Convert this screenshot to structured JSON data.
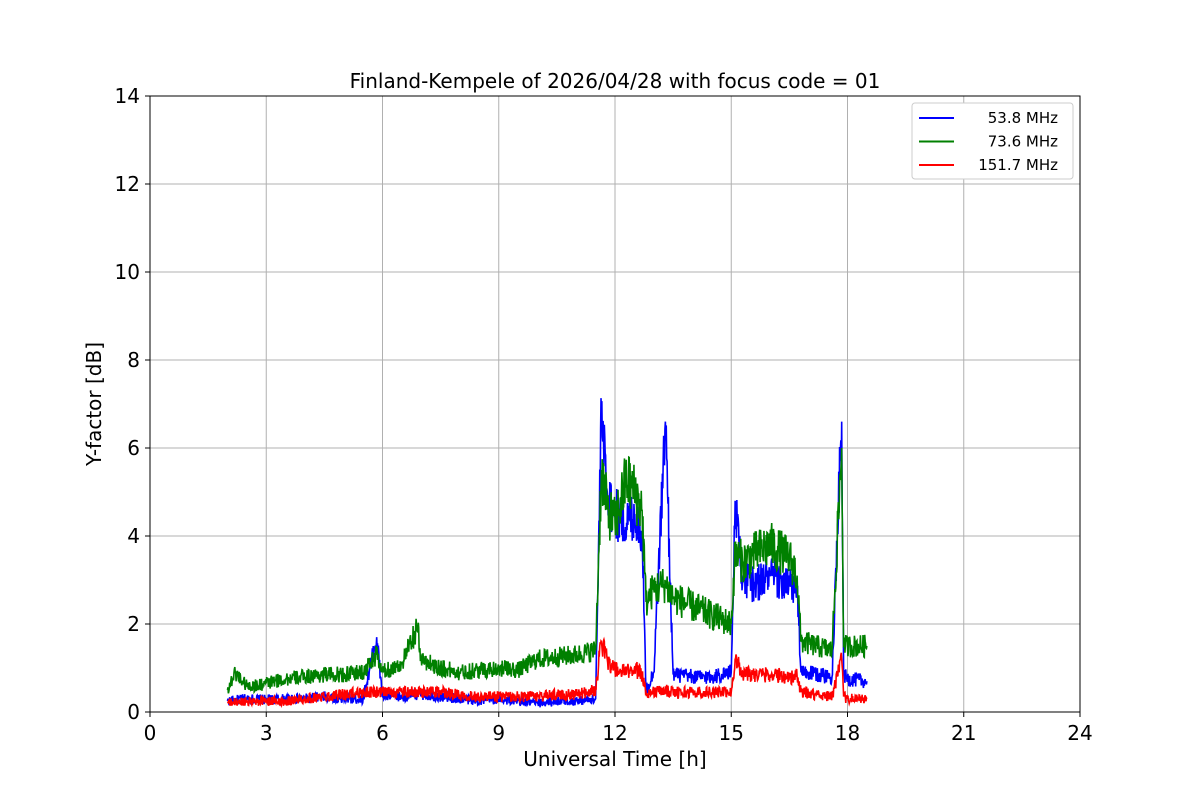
{
  "chart_data": {
    "type": "line",
    "title": "Finland-Kempele of 2026/04/28 with focus code = 01",
    "xlabel": "Universal Time [h]",
    "ylabel": "Y-factor [dB]",
    "xlim": [
      0,
      24
    ],
    "ylim": [
      0,
      14
    ],
    "xticks": [
      "0",
      "3",
      "6",
      "9",
      "12",
      "15",
      "18",
      "21",
      "24"
    ],
    "yticks": [
      "0",
      "2",
      "4",
      "6",
      "8",
      "10",
      "12",
      "14"
    ],
    "grid": true,
    "legend_position": "top-right",
    "series": [
      {
        "name": "53.8 MHz",
        "color": "#0000ff",
        "x": [
          2.0,
          2.5,
          3.0,
          3.5,
          4.0,
          4.5,
          5.0,
          5.5,
          5.85,
          6.0,
          6.5,
          7.0,
          7.5,
          8.0,
          8.5,
          9.0,
          9.5,
          10.0,
          10.5,
          11.0,
          11.5,
          11.65,
          11.8,
          12.0,
          12.3,
          12.5,
          12.7,
          12.8,
          13.0,
          13.3,
          13.5,
          14.0,
          14.5,
          15.0,
          15.1,
          15.3,
          15.6,
          16.0,
          16.5,
          16.7,
          16.8,
          17.2,
          17.6,
          17.85,
          17.9,
          18.0,
          18.5
        ],
        "y": [
          0.25,
          0.3,
          0.28,
          0.3,
          0.3,
          0.35,
          0.3,
          0.3,
          1.7,
          0.35,
          0.35,
          0.4,
          0.35,
          0.3,
          0.25,
          0.3,
          0.25,
          0.2,
          0.25,
          0.25,
          0.3,
          6.8,
          5.0,
          4.5,
          4.3,
          4.5,
          4.1,
          0.5,
          0.9,
          6.6,
          0.85,
          0.8,
          0.8,
          0.9,
          4.8,
          3.0,
          2.9,
          3.1,
          2.85,
          2.8,
          0.9,
          0.85,
          0.8,
          6.6,
          0.85,
          0.75,
          0.7
        ]
      },
      {
        "name": "73.6 MHz",
        "color": "#008000",
        "x": [
          2.0,
          2.2,
          2.5,
          2.8,
          3.0,
          3.5,
          4.0,
          4.5,
          5.0,
          5.5,
          5.85,
          6.0,
          6.5,
          6.9,
          7.0,
          7.5,
          8.0,
          8.5,
          9.0,
          9.5,
          10.0,
          10.5,
          11.0,
          11.5,
          11.65,
          11.8,
          12.0,
          12.3,
          12.5,
          12.7,
          12.8,
          13.0,
          13.3,
          13.5,
          14.0,
          14.5,
          15.0,
          15.1,
          15.3,
          15.6,
          16.0,
          16.5,
          16.7,
          16.8,
          17.2,
          17.6,
          17.85,
          17.9,
          18.0,
          18.5
        ],
        "y": [
          0.5,
          0.9,
          0.6,
          0.6,
          0.65,
          0.75,
          0.8,
          0.85,
          0.85,
          0.9,
          1.3,
          0.9,
          1.1,
          1.9,
          1.2,
          1.0,
          0.9,
          0.95,
          1.0,
          0.95,
          1.2,
          1.25,
          1.3,
          1.4,
          5.5,
          4.6,
          4.3,
          5.3,
          5.0,
          4.6,
          2.5,
          2.8,
          2.9,
          2.6,
          2.4,
          2.2,
          2.0,
          3.6,
          3.4,
          3.6,
          3.8,
          3.5,
          3.1,
          1.6,
          1.5,
          1.4,
          6.0,
          1.5,
          1.5,
          1.5
        ]
      },
      {
        "name": "151.7 MHz",
        "color": "#ff0000",
        "x": [
          2.0,
          2.5,
          3.0,
          3.5,
          4.0,
          4.5,
          5.0,
          5.5,
          6.0,
          6.5,
          7.0,
          7.5,
          8.0,
          8.5,
          9.0,
          9.5,
          10.0,
          10.5,
          11.0,
          11.5,
          11.65,
          11.8,
          12.0,
          12.3,
          12.5,
          12.7,
          12.8,
          13.0,
          13.3,
          13.5,
          14.0,
          14.5,
          15.0,
          15.1,
          15.3,
          15.6,
          16.0,
          16.5,
          16.7,
          16.8,
          17.2,
          17.6,
          17.85,
          17.9,
          18.0,
          18.5
        ],
        "y": [
          0.2,
          0.25,
          0.25,
          0.25,
          0.3,
          0.35,
          0.4,
          0.45,
          0.45,
          0.45,
          0.45,
          0.45,
          0.4,
          0.35,
          0.35,
          0.35,
          0.35,
          0.4,
          0.4,
          0.5,
          1.6,
          1.2,
          0.95,
          0.9,
          1.0,
          0.85,
          0.45,
          0.45,
          0.5,
          0.45,
          0.45,
          0.45,
          0.45,
          1.2,
          0.9,
          0.85,
          0.85,
          0.8,
          0.8,
          0.45,
          0.4,
          0.35,
          1.2,
          0.35,
          0.3,
          0.3
        ]
      }
    ]
  }
}
